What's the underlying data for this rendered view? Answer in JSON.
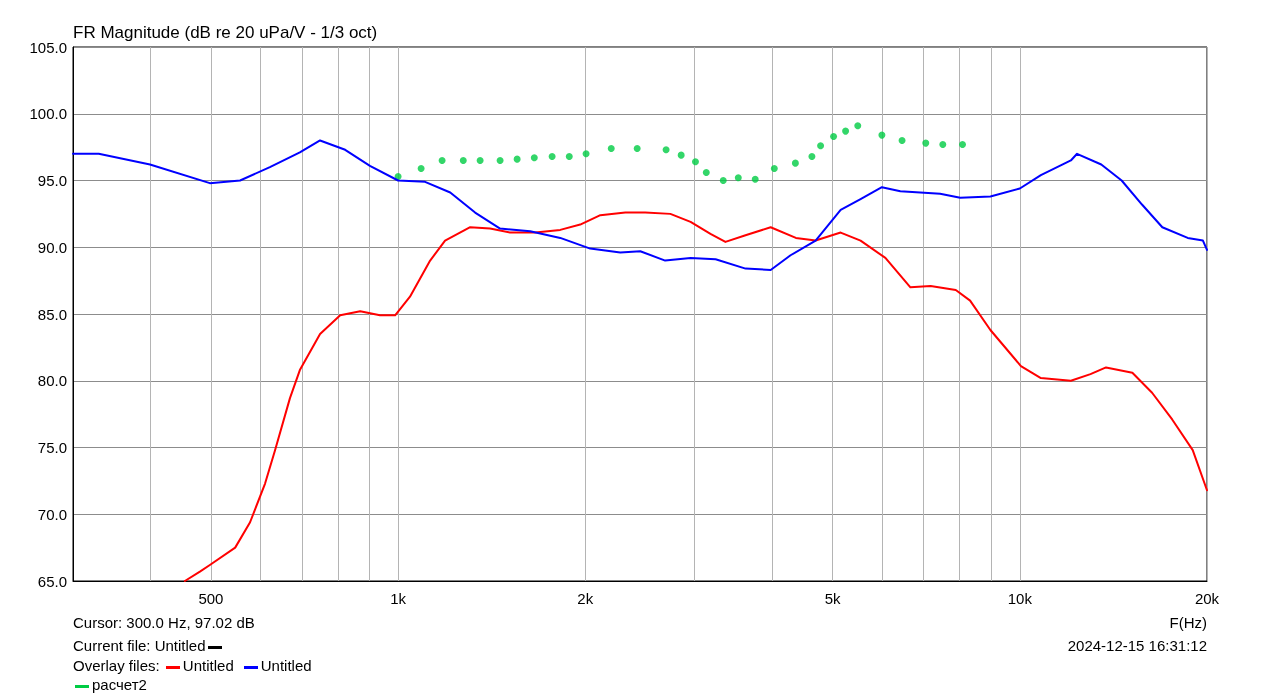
{
  "chart_data": {
    "type": "line",
    "title": "FR Magnitude (dB re 20 uPa/V - 1/3 oct)",
    "xlabel": "F(Hz)",
    "log": "x",
    "grid": true,
    "legend": "bottom left",
    "xlim": [
      300,
      20000
    ],
    "xticks": [
      {
        "value": 400,
        "label": null
      },
      500,
      {
        "value": 600,
        "label": null
      },
      {
        "value": 700,
        "label": null
      },
      {
        "value": 800,
        "label": null
      },
      {
        "value": 900,
        "label": null
      },
      {
        "value": 1000,
        "label": "1k"
      },
      {
        "value": 2000,
        "label": "2k"
      },
      {
        "value": 3000,
        "label": null
      },
      {
        "value": 4000,
        "label": null
      },
      {
        "value": 5000,
        "label": "5k"
      },
      {
        "value": 6000,
        "label": null
      },
      {
        "value": 7000,
        "label": null
      },
      {
        "value": 8000,
        "label": null
      },
      {
        "value": 9000,
        "label": null
      },
      {
        "value": 10000,
        "label": "10k"
      },
      {
        "value": 20000,
        "label": "20k"
      }
    ],
    "ylim": [
      65,
      105
    ],
    "yticks": [
      {
        "value": 65,
        "label": "65.0"
      },
      {
        "value": 70,
        "label": "70.0"
      },
      {
        "value": 75,
        "label": "75.0"
      },
      {
        "value": 80,
        "label": "80.0"
      },
      {
        "value": 85,
        "label": "85.0"
      },
      {
        "value": 90,
        "label": "90.0"
      },
      {
        "value": 95,
        "label": "95.0"
      },
      {
        "value": 100,
        "label": "100.0"
      },
      {
        "value": 105,
        "label": "105.0"
      }
    ],
    "annotations": [
      "Cursor: 300.0 Hz, 97.02 dB",
      "Current file: Untitled",
      "Overlay files:",
      "2024-12-15  16:31:12"
    ],
    "series": [
      {
        "name": "Untitled",
        "color": "#ff0000",
        "type": "line",
        "line_style": "solid",
        "x": [
          454,
          480,
          498,
          547,
          578,
          611,
          634,
          670,
          695,
          749,
          807,
          869,
          935,
          989,
          1045,
          1126,
          1190,
          1306,
          1406,
          1514,
          1662,
          1823,
          1963,
          2115,
          2320,
          2497,
          2741,
          2954,
          3180,
          3361,
          3621,
          3974,
          4363,
          4694,
          5150,
          5544,
          6078,
          6668,
          7186,
          7888,
          8318,
          8967,
          10040,
          10810,
          12080,
          12990,
          13760,
          15170,
          16320,
          17580,
          18970,
          20000
        ],
        "values": [
          65.0,
          65.7,
          66.2,
          67.5,
          69.4,
          72.3,
          74.8,
          78.7,
          80.8,
          83.5,
          84.9,
          85.2,
          84.9,
          84.9,
          86.3,
          89.0,
          90.5,
          91.5,
          91.4,
          91.1,
          91.1,
          91.3,
          91.7,
          92.4,
          92.6,
          92.6,
          92.5,
          91.9,
          91.0,
          90.4,
          90.9,
          91.5,
          90.7,
          90.5,
          91.1,
          90.5,
          89.2,
          87.0,
          87.1,
          86.8,
          86.0,
          83.8,
          81.1,
          80.2,
          80.0,
          80.5,
          81.0,
          80.6,
          79.1,
          77.1,
          74.8,
          71.8
        ]
      },
      {
        "name": "Untitled",
        "color": "#0000ff",
        "type": "line",
        "line_style": "solid",
        "x": [
          300,
          330,
          399,
          498,
          557,
          622,
          695,
          749,
          822,
          901,
          1000,
          1105,
          1213,
          1330,
          1459,
          1631,
          1823,
          2037,
          2277,
          2452,
          2689,
          2954,
          3241,
          3621,
          3974,
          4278,
          4694,
          5150,
          5544,
          6000,
          6424,
          7444,
          8019,
          8967,
          10000,
          10810,
          12080,
          12360,
          13520,
          14580,
          15720,
          16950,
          18620,
          19700,
          20000
        ],
        "values": [
          97.0,
          97.0,
          96.2,
          94.8,
          95.0,
          96.0,
          97.1,
          98.0,
          97.3,
          96.1,
          95.0,
          94.9,
          94.1,
          92.6,
          91.4,
          91.2,
          90.7,
          89.9,
          89.6,
          89.7,
          89.0,
          89.2,
          89.1,
          88.4,
          88.3,
          89.4,
          90.5,
          92.8,
          93.6,
          94.5,
          94.2,
          94.0,
          93.7,
          93.8,
          94.4,
          95.4,
          96.5,
          97.0,
          96.2,
          95.0,
          93.2,
          91.5,
          90.7,
          90.5,
          89.8
        ]
      },
      {
        "name": "расчет2",
        "color": "#00cc44",
        "type": "scatter",
        "marker": "circle",
        "x": [
          1000,
          1089,
          1177,
          1273,
          1355,
          1459,
          1554,
          1656,
          1769,
          1885,
          2006,
          2202,
          2424,
          2698,
          2853,
          3008,
          3131,
          3334,
          3525,
          3753,
          4028,
          4355,
          4630,
          4781,
          5017,
          5245,
          5487,
          6000,
          6465,
          7058,
          7518,
          8087
        ],
        "values": [
          95.3,
          95.9,
          96.5,
          96.5,
          96.5,
          96.5,
          96.6,
          96.7,
          96.8,
          96.8,
          97.0,
          97.4,
          97.4,
          97.3,
          96.9,
          96.4,
          95.6,
          95.0,
          95.2,
          95.1,
          95.9,
          96.3,
          96.8,
          97.6,
          98.3,
          98.7,
          99.1,
          98.4,
          98.0,
          97.8,
          97.7,
          97.7
        ]
      }
    ]
  }
}
